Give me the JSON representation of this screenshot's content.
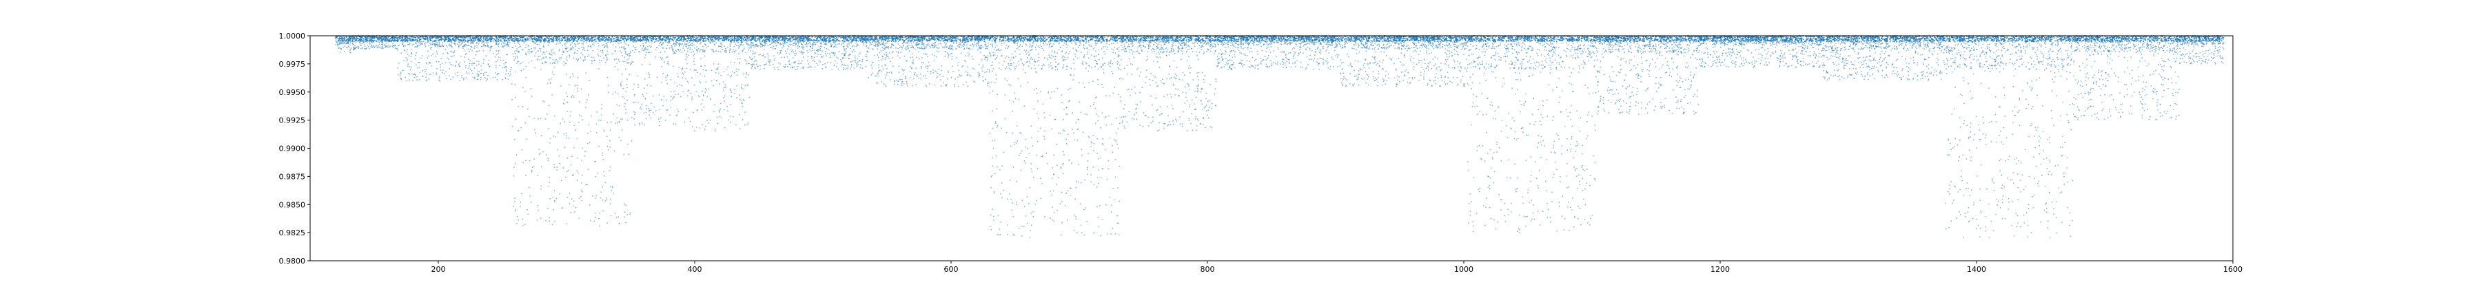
{
  "chart_data": {
    "type": "scatter",
    "title": "",
    "xlabel": "",
    "ylabel": "",
    "xlim": [
      100,
      1600
    ],
    "ylim": [
      0.98,
      1.0
    ],
    "grid": false,
    "legend": "none",
    "marker_color": "#1f77b4",
    "x_ticks": [
      200,
      400,
      600,
      800,
      1000,
      1200,
      1400,
      1600
    ],
    "x_tick_labels": [
      "200",
      "400",
      "600",
      "800",
      "1000",
      "1200",
      "1400",
      "1600"
    ],
    "y_ticks": [
      0.98,
      0.9825,
      0.985,
      0.9875,
      0.99,
      0.9925,
      0.995,
      0.9975,
      1.0
    ],
    "y_tick_labels": [
      "0.9800",
      "0.9825",
      "0.9850",
      "0.9875",
      "0.9900",
      "0.9925",
      "0.9950",
      "0.9975",
      "1.0000"
    ],
    "segments": [
      {
        "x": [
          120,
          134
        ],
        "y_min": 0.9985,
        "dense_top": 0.9992
      },
      {
        "x": [
          134,
          168
        ],
        "y_min": 0.9988,
        "dense_top": 0.9994
      },
      {
        "x": [
          168,
          257
        ],
        "y_min": 0.996,
        "dense_top": 0.999
      },
      {
        "x": [
          257,
          352
        ],
        "y_min": 0.983,
        "dense_top": 0.9975
      },
      {
        "x": [
          352,
          398
        ],
        "y_min": 0.992,
        "dense_top": 0.9985
      },
      {
        "x": [
          398,
          443
        ],
        "y_min": 0.9915,
        "dense_top": 0.9985
      },
      {
        "x": [
          443,
          535
        ],
        "y_min": 0.997,
        "dense_top": 0.999
      },
      {
        "x": [
          535,
          630
        ],
        "y_min": 0.9955,
        "dense_top": 0.9988
      },
      {
        "x": [
          630,
          732
        ],
        "y_min": 0.982,
        "dense_top": 0.997
      },
      {
        "x": [
          732,
          807
        ],
        "y_min": 0.9915,
        "dense_top": 0.9985
      },
      {
        "x": [
          807,
          903
        ],
        "y_min": 0.997,
        "dense_top": 0.9992
      },
      {
        "x": [
          903,
          1003
        ],
        "y_min": 0.9955,
        "dense_top": 0.9988
      },
      {
        "x": [
          1003,
          1103
        ],
        "y_min": 0.9825,
        "dense_top": 0.997
      },
      {
        "x": [
          1103,
          1183
        ],
        "y_min": 0.993,
        "dense_top": 0.9985
      },
      {
        "x": [
          1183,
          1280
        ],
        "y_min": 0.9972,
        "dense_top": 0.9992
      },
      {
        "x": [
          1280,
          1300
        ],
        "y_min": 0.996,
        "dense_top": 0.9985
      },
      {
        "x": [
          1300,
          1375
        ],
        "y_min": 0.996,
        "dense_top": 0.9988
      },
      {
        "x": [
          1375,
          1475
        ],
        "y_min": 0.982,
        "dense_top": 0.997
      },
      {
        "x": [
          1475,
          1558
        ],
        "y_min": 0.9925,
        "dense_top": 0.9985
      },
      {
        "x": [
          1558,
          1593
        ],
        "y_min": 0.9975,
        "dense_top": 0.9992
      }
    ]
  }
}
